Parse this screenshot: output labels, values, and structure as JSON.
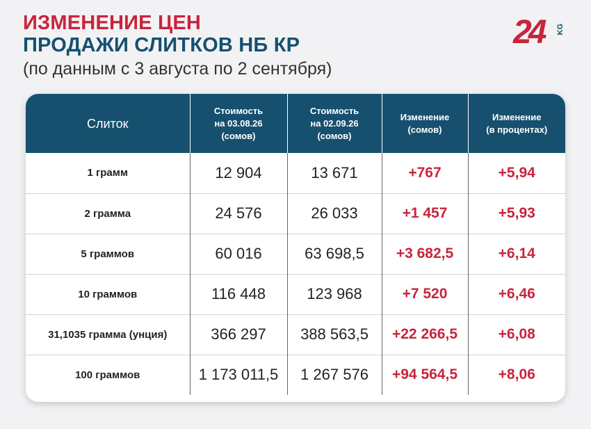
{
  "header": {
    "title_line1": "ИЗМЕНЕНИЕ ЦЕН",
    "title_line2": "ПРОДАЖИ СЛИТКОВ НБ КР",
    "subtitle": "(по данным с 3 августа по 2 сентября)"
  },
  "logo": {
    "number": "24",
    "suffix": "KG"
  },
  "table": {
    "columns": [
      [
        "Слиток"
      ],
      [
        "Стоимость",
        "на 03.08.26",
        "(сомов)"
      ],
      [
        "Стоимость",
        "на 02.09.26",
        "(сомов)"
      ],
      [
        "Изменение",
        "(сомов)"
      ],
      [
        "Изменение",
        "(в процентах)"
      ]
    ],
    "rows": [
      {
        "name": "1 грамм",
        "price_start": "12 904",
        "price_end": "13 671",
        "change_som": "+767",
        "change_pct": "+5,94"
      },
      {
        "name": "2 грамма",
        "price_start": "24 576",
        "price_end": "26 033",
        "change_som": "+1 457",
        "change_pct": "+5,93"
      },
      {
        "name": "5 граммов",
        "price_start": "60 016",
        "price_end": "63 698,5",
        "change_som": "+3 682,5",
        "change_pct": "+6,14"
      },
      {
        "name": "10 граммов",
        "price_start": "116 448",
        "price_end": "123 968",
        "change_som": "+7 520",
        "change_pct": "+6,46"
      },
      {
        "name": "31,1035 грамма (унция)",
        "price_start": "366 297",
        "price_end": "388 563,5",
        "change_som": "+22 266,5",
        "change_pct": "+6,08"
      },
      {
        "name": "100 граммов",
        "price_start": "1 173 011,5",
        "price_end": "1 267 576",
        "change_som": "+94 564,5",
        "change_pct": "+8,06"
      }
    ]
  },
  "colors": {
    "accent_red": "#c8243c",
    "header_blue": "#16506e",
    "background": "#f2f2f4"
  }
}
